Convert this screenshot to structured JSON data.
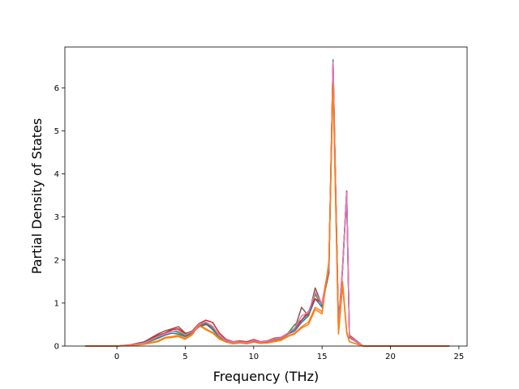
{
  "chart_data": {
    "type": "line",
    "title": "",
    "xlabel": "Frequency (THz)",
    "ylabel": "Partial Density of States",
    "xlim": [
      -3.8,
      25.6
    ],
    "ylim": [
      0,
      6.95
    ],
    "xticks": [
      0,
      5,
      10,
      15,
      20,
      25
    ],
    "yticks": [
      0,
      1,
      2,
      3,
      4,
      5,
      6
    ],
    "xtick_labels": [
      "0",
      "5",
      "10",
      "15",
      "20",
      "25"
    ],
    "ytick_labels": [
      "0",
      "1",
      "2",
      "3",
      "4",
      "5",
      "6"
    ],
    "grid": false,
    "legend": "none",
    "series": [
      {
        "color": "#1f77b4",
        "x": [
          -2.3,
          0.0,
          1.0,
          2.0,
          3.0,
          3.5,
          4.0,
          4.5,
          5.0,
          5.5,
          6.0,
          6.5,
          7.0,
          7.5,
          8.0,
          8.5,
          9.0,
          9.5,
          10.0,
          10.5,
          11.0,
          11.5,
          12.0,
          12.5,
          13.0,
          13.5,
          14.0,
          14.5,
          15.0,
          15.5,
          15.8,
          16.2,
          16.5,
          16.8,
          17.0,
          18.0,
          20.0,
          24.3
        ],
        "y": [
          0.0,
          0.0,
          0.02,
          0.06,
          0.18,
          0.25,
          0.3,
          0.28,
          0.22,
          0.3,
          0.45,
          0.52,
          0.38,
          0.2,
          0.12,
          0.08,
          0.1,
          0.07,
          0.12,
          0.08,
          0.1,
          0.14,
          0.18,
          0.28,
          0.35,
          0.55,
          0.7,
          1.1,
          0.9,
          1.8,
          6.65,
          0.4,
          1.8,
          3.6,
          0.2,
          0.0,
          0.0,
          0.0
        ]
      },
      {
        "color": "#ff7f0e",
        "x": [
          -2.3,
          0.0,
          1.0,
          2.0,
          3.0,
          3.5,
          4.0,
          4.5,
          5.0,
          5.5,
          6.0,
          6.5,
          7.0,
          7.5,
          8.0,
          8.5,
          9.0,
          9.5,
          10.0,
          10.5,
          11.0,
          11.5,
          12.0,
          12.5,
          13.0,
          13.5,
          14.0,
          14.5,
          15.0,
          15.5,
          15.8,
          16.2,
          16.5,
          16.8,
          17.0,
          18.0,
          20.0,
          24.3
        ],
        "y": [
          0.0,
          0.0,
          0.01,
          0.05,
          0.12,
          0.2,
          0.22,
          0.25,
          0.18,
          0.28,
          0.5,
          0.4,
          0.32,
          0.18,
          0.1,
          0.06,
          0.08,
          0.06,
          0.1,
          0.07,
          0.08,
          0.12,
          0.15,
          0.24,
          0.3,
          0.45,
          0.55,
          0.9,
          0.8,
          1.95,
          6.15,
          0.3,
          1.5,
          0.35,
          0.1,
          0.0,
          0.0,
          0.0
        ]
      },
      {
        "color": "#2ca02c",
        "x": [
          -2.3,
          0.0,
          1.0,
          2.0,
          3.0,
          3.5,
          4.0,
          4.5,
          5.0,
          5.5,
          6.0,
          6.5,
          7.0,
          7.5,
          8.0,
          8.5,
          9.0,
          9.5,
          10.0,
          10.5,
          11.0,
          11.5,
          12.0,
          12.5,
          13.0,
          13.5,
          14.0,
          14.5,
          15.0,
          15.5,
          15.8,
          16.2,
          16.5,
          16.8,
          17.0,
          18.0,
          20.0,
          24.3
        ],
        "y": [
          0.0,
          0.0,
          0.02,
          0.07,
          0.2,
          0.3,
          0.35,
          0.32,
          0.24,
          0.32,
          0.48,
          0.55,
          0.42,
          0.22,
          0.14,
          0.09,
          0.11,
          0.08,
          0.13,
          0.09,
          0.11,
          0.15,
          0.2,
          0.3,
          0.5,
          0.6,
          0.75,
          1.2,
          0.95,
          1.9,
          6.5,
          0.45,
          1.85,
          3.5,
          0.2,
          0.0,
          0.0,
          0.0
        ]
      },
      {
        "color": "#d62728",
        "x": [
          -2.3,
          0.0,
          1.0,
          2.0,
          3.0,
          3.5,
          4.0,
          4.5,
          5.0,
          5.5,
          6.0,
          6.5,
          7.0,
          7.5,
          8.0,
          8.5,
          9.0,
          9.5,
          10.0,
          10.5,
          11.0,
          11.5,
          12.0,
          12.5,
          13.0,
          13.5,
          14.0,
          14.5,
          15.0,
          15.5,
          15.8,
          16.2,
          16.5,
          16.8,
          17.0,
          18.0,
          20.0,
          24.3
        ],
        "y": [
          0.0,
          0.0,
          0.02,
          0.08,
          0.25,
          0.3,
          0.38,
          0.4,
          0.28,
          0.35,
          0.52,
          0.6,
          0.55,
          0.3,
          0.15,
          0.1,
          0.12,
          0.1,
          0.15,
          0.1,
          0.12,
          0.18,
          0.2,
          0.3,
          0.4,
          0.6,
          0.8,
          1.1,
          1.0,
          1.85,
          6.6,
          0.5,
          1.85,
          3.6,
          0.25,
          0.0,
          0.0,
          0.0
        ]
      },
      {
        "color": "#8c564b",
        "x": [
          -2.3,
          0.0,
          1.0,
          2.0,
          3.0,
          3.5,
          4.0,
          4.5,
          5.0,
          5.5,
          6.0,
          6.5,
          7.0,
          7.5,
          8.0,
          8.5,
          9.0,
          9.5,
          10.0,
          10.5,
          11.0,
          11.5,
          12.0,
          12.5,
          13.0,
          13.5,
          14.0,
          14.5,
          15.0,
          15.5,
          15.8,
          16.2,
          16.5,
          16.8,
          17.0,
          18.0,
          20.0,
          24.3
        ],
        "y": [
          0.0,
          0.0,
          0.03,
          0.1,
          0.28,
          0.35,
          0.4,
          0.45,
          0.3,
          0.32,
          0.45,
          0.5,
          0.45,
          0.25,
          0.12,
          0.1,
          0.1,
          0.08,
          0.12,
          0.08,
          0.1,
          0.16,
          0.18,
          0.28,
          0.4,
          0.9,
          0.7,
          1.35,
          0.95,
          1.7,
          6.55,
          0.45,
          1.8,
          3.55,
          0.2,
          0.0,
          0.0,
          0.0
        ]
      },
      {
        "color": "#e377c2",
        "x": [
          -2.3,
          0.0,
          1.0,
          2.0,
          3.0,
          3.5,
          4.0,
          4.5,
          5.0,
          5.5,
          6.0,
          6.5,
          7.0,
          7.5,
          8.0,
          8.5,
          9.0,
          9.5,
          10.0,
          10.5,
          11.0,
          11.5,
          12.0,
          12.5,
          13.0,
          13.5,
          14.0,
          14.5,
          15.0,
          15.5,
          15.8,
          16.2,
          16.5,
          16.8,
          17.0,
          18.0,
          20.0,
          24.3
        ],
        "y": [
          0.0,
          0.0,
          0.02,
          0.07,
          0.22,
          0.28,
          0.34,
          0.36,
          0.26,
          0.33,
          0.5,
          0.56,
          0.46,
          0.24,
          0.13,
          0.09,
          0.1,
          0.08,
          0.13,
          0.09,
          0.11,
          0.16,
          0.19,
          0.3,
          0.42,
          0.7,
          0.78,
          1.25,
          0.98,
          1.82,
          6.6,
          0.42,
          1.82,
          3.58,
          0.22,
          0.0,
          0.0,
          0.0
        ]
      },
      {
        "color": "#ff7f0e",
        "x": [
          -2.3,
          0.0,
          1.0,
          2.0,
          3.0,
          3.5,
          4.0,
          4.5,
          5.0,
          5.5,
          6.0,
          6.5,
          7.0,
          7.5,
          8.0,
          8.5,
          9.0,
          9.5,
          10.0,
          10.5,
          11.0,
          11.5,
          12.0,
          12.5,
          13.0,
          13.5,
          14.0,
          14.5,
          15.0,
          15.5,
          15.8,
          16.2,
          16.5,
          16.8,
          17.0,
          18.0,
          20.0,
          24.3
        ],
        "y": [
          0.0,
          0.0,
          0.01,
          0.04,
          0.1,
          0.18,
          0.2,
          0.22,
          0.16,
          0.26,
          0.48,
          0.38,
          0.3,
          0.16,
          0.09,
          0.05,
          0.07,
          0.05,
          0.09,
          0.06,
          0.07,
          0.1,
          0.13,
          0.22,
          0.28,
          0.42,
          0.5,
          0.85,
          0.75,
          1.98,
          6.1,
          0.28,
          1.4,
          0.3,
          0.1,
          0.0,
          0.0,
          0.0
        ]
      }
    ]
  }
}
